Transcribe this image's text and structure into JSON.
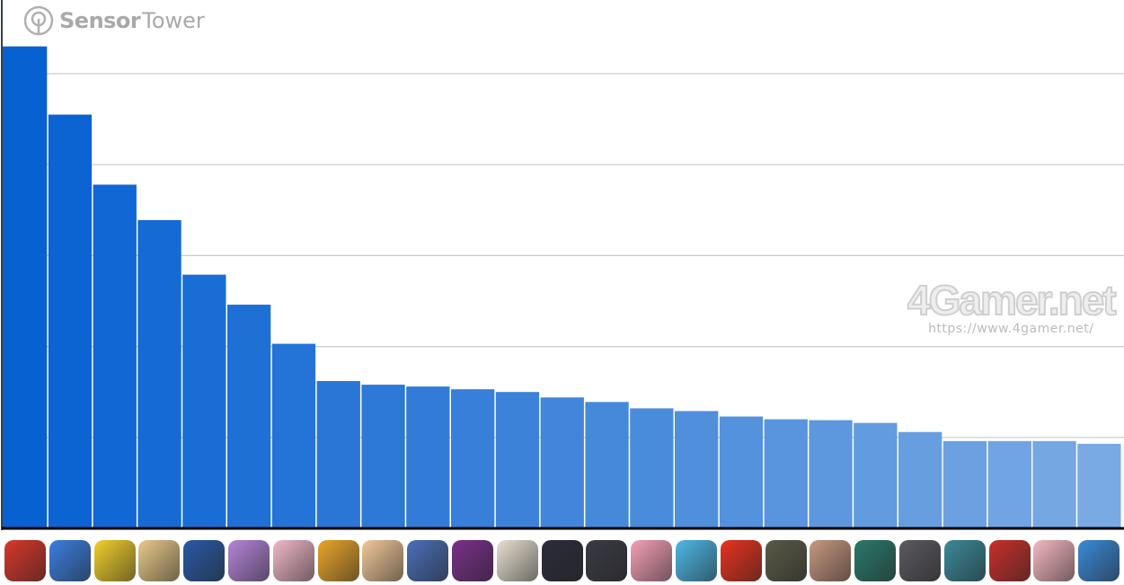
{
  "brand": {
    "name_bold": "Sensor",
    "name_light": "Tower"
  },
  "watermark": {
    "text": "4Gamer.net",
    "url": "https://www.4gamer.net/"
  },
  "chart_data": {
    "type": "bar",
    "title": "",
    "xlabel": "",
    "ylabel": "",
    "grid": true,
    "ylim": [
      0,
      5.3
    ],
    "y_unit": "relative (gridline intervals; no tick labels printed)",
    "categories_shown_as": "app icons",
    "values": [
      5.3,
      4.55,
      3.78,
      3.39,
      2.79,
      2.46,
      2.03,
      1.62,
      1.58,
      1.56,
      1.53,
      1.5,
      1.44,
      1.39,
      1.32,
      1.29,
      1.23,
      1.2,
      1.19,
      1.16,
      1.06,
      0.96,
      0.96,
      0.96,
      0.93
    ],
    "bar_color_start": "#0761d1",
    "bar_color_end": "#7aaae3",
    "icon_colors": [
      "#d8372a",
      "#3b7fe0",
      "#f2d02a",
      "#e8c98a",
      "#2a5aa6",
      "#b585d8",
      "#f0b8c8",
      "#e9a52a",
      "#f2c89a",
      "#4a6fb8",
      "#7a2f8a",
      "#e8e0d0",
      "#2c2c3a",
      "#3a3a44",
      "#f5a0b8",
      "#4db8e8",
      "#e8321e",
      "#5a5a48",
      "#c89880",
      "#2a7a6a",
      "#5a5a60",
      "#3a8a98",
      "#c8302a",
      "#f5b8c0",
      "#3a8ad8"
    ]
  }
}
